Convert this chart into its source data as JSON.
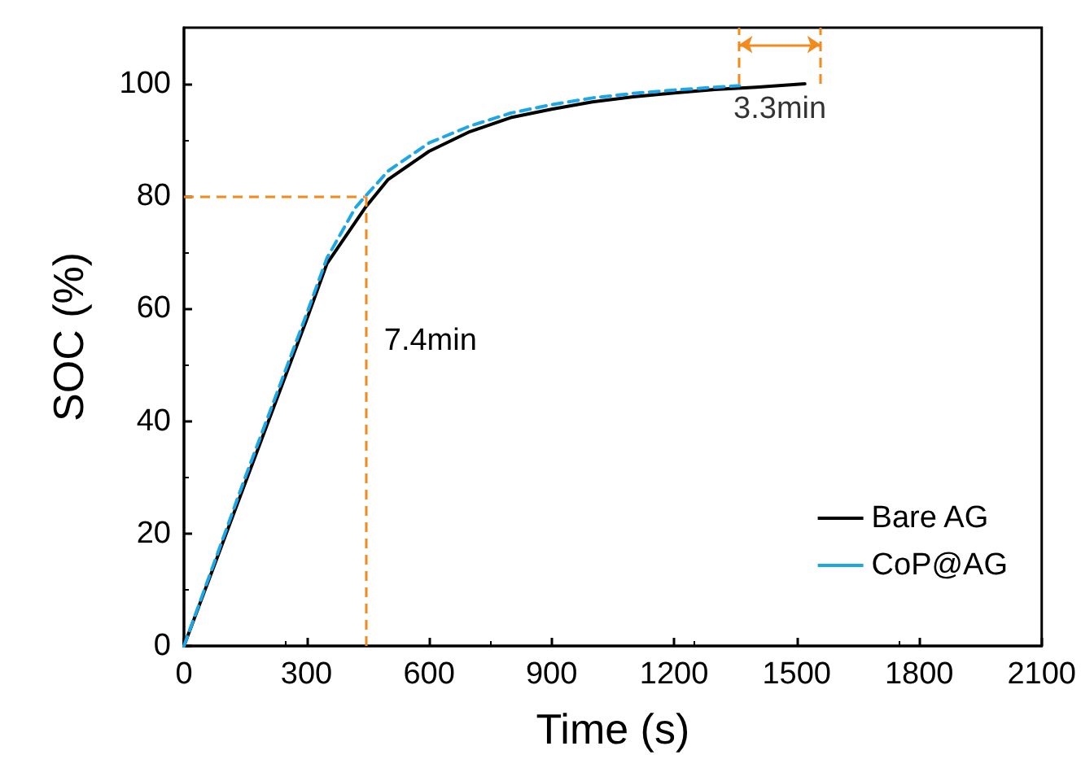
{
  "chart_data": {
    "type": "line",
    "xlabel": "Time (s)",
    "ylabel": "SOC (%)",
    "xlim": [
      0,
      2100
    ],
    "xticks": [
      0,
      300,
      600,
      900,
      1200,
      1500,
      1800,
      2100
    ],
    "ylim": [
      0,
      110
    ],
    "yticks": [
      0,
      20,
      40,
      60,
      80,
      100
    ],
    "grid": false,
    "legend": "bottom right",
    "marker": "none",
    "series": [
      {
        "name": "Bare AG",
        "color": "#000000",
        "line_style": "solid",
        "x": [
          0,
          150,
          300,
          350,
          444,
          500,
          600,
          700,
          800,
          900,
          1000,
          1100,
          1200,
          1300,
          1400,
          1520
        ],
        "values": [
          0,
          29,
          58,
          68,
          78,
          83,
          88,
          91.5,
          94,
          95.5,
          96.8,
          97.7,
          98.4,
          99,
          99.4,
          100
        ]
      },
      {
        "name": "CoP@AG",
        "color": "#1ea7e6",
        "line_style": "dashed",
        "x": [
          0,
          150,
          300,
          350,
          420,
          444,
          500,
          600,
          700,
          800,
          900,
          1000,
          1100,
          1200,
          1300,
          1360
        ],
        "values": [
          0,
          30,
          59,
          69,
          78,
          80,
          84.5,
          89.5,
          92.5,
          94.8,
          96.3,
          97.5,
          98.3,
          98.9,
          99.4,
          99.7
        ]
      }
    ],
    "ref_lines": [
      {
        "axis": "y",
        "value": 80,
        "color": "#f28a1e",
        "line_style": "dashed"
      },
      {
        "axis": "x",
        "value": 444,
        "label": "7.4min",
        "color": "#f28a1e",
        "line_style": "dashed"
      },
      {
        "axis": "x",
        "value": 1360,
        "color": "#f28a1e",
        "line_style": "dashed"
      },
      {
        "axis": "x",
        "value": 1558,
        "color": "#f28a1e",
        "line_style": "dashed"
      }
    ],
    "annotations": [
      "3.3min"
    ]
  }
}
